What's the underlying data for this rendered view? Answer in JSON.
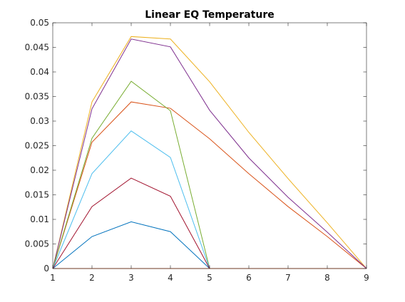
{
  "chart_data": {
    "type": "line",
    "title": "Linear EQ Temperature",
    "xlabel": "",
    "ylabel": "",
    "xlim": [
      1,
      9
    ],
    "ylim": [
      0,
      0.05
    ],
    "x_ticks": [
      "1",
      "2",
      "3",
      "4",
      "5",
      "6",
      "7",
      "8",
      "9"
    ],
    "y_ticks": [
      "0",
      "0.005",
      "0.01",
      "0.015",
      "0.02",
      "0.025",
      "0.03",
      "0.035",
      "0.04",
      "0.045",
      "0.05"
    ],
    "grid": false,
    "legend": "none",
    "x": [
      1,
      2,
      3,
      4,
      5,
      6,
      7,
      8,
      9
    ],
    "series": [
      {
        "color": "#0072BD",
        "values": [
          0,
          0.0065,
          0.0095,
          0.0075,
          0,
          0,
          0,
          0,
          0
        ]
      },
      {
        "color": "#D95319",
        "values": [
          0,
          0.0257,
          0.0339,
          0.0326,
          0.0264,
          0.0193,
          0.0126,
          0.0065,
          0
        ]
      },
      {
        "color": "#EDB120",
        "values": [
          0,
          0.0339,
          0.0472,
          0.0467,
          0.038,
          0.0277,
          0.0183,
          0.0093,
          0
        ]
      },
      {
        "color": "#7E2F8E",
        "values": [
          0,
          0.0325,
          0.0467,
          0.0451,
          0.0322,
          0.0225,
          0.0145,
          0.0074,
          0
        ]
      },
      {
        "color": "#77AC30",
        "values": [
          0,
          0.0265,
          0.0381,
          0.0321,
          0,
          0,
          0,
          0,
          0
        ]
      },
      {
        "color": "#4DBEEE",
        "values": [
          0,
          0.0193,
          0.028,
          0.0226,
          0,
          0,
          0,
          0,
          0
        ]
      },
      {
        "color": "#A2142F",
        "values": [
          0,
          0.0126,
          0.0184,
          0.0147,
          0,
          0,
          0,
          0,
          0
        ]
      },
      {
        "color": "#D95319",
        "values": [
          0,
          0,
          0,
          0,
          0,
          0,
          0,
          0,
          0
        ]
      }
    ]
  }
}
